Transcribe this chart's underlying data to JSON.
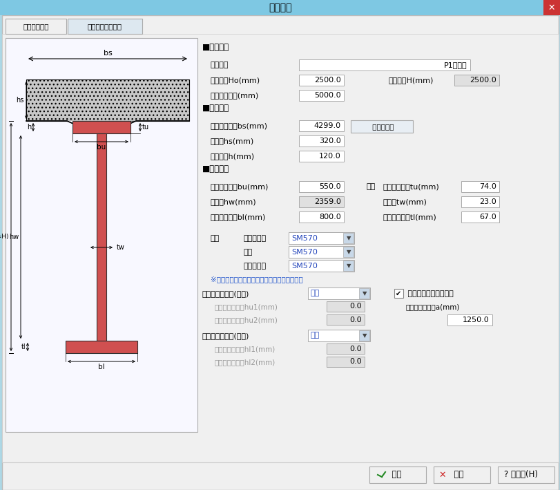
{
  "title": "断面形状",
  "bg_color": "#add8e6",
  "dialog_bg": "#f0f0f0",
  "tab1": "断面形状寸法",
  "tab2": "床版橋軸方向鉄筋",
  "section_basic": "■基本諸元",
  "label_name": "断面名称",
  "label_ho": "基準桁高Ho(mm)",
  "label_H": "鋼桁全高H(mm)",
  "label_dist": "固定点間距離(mm)",
  "val_name": "P1支点上",
  "val_ho": "2500.0",
  "val_H": "2500.0",
  "val_dist": "5000.0",
  "section_floor": "■床版諸元",
  "label_bs": "床版の有効幅bs(mm)",
  "label_hs": "床版厚hs(mm)",
  "label_h": "ハンチ高h(mm)",
  "val_bs": "4299.0",
  "val_hs": "320.0",
  "val_h": "120.0",
  "btn_santeiru": " 算定ツール",
  "section_main": "■主桁諸元",
  "label_bu": "上フランジ幅bu(mm)",
  "label_hw": "腹板高hw(mm)",
  "label_bl": "下フランジ幅bl(mm)",
  "label_banka": "板厚",
  "label_tu": "上フランジ厚tu(mm)",
  "label_tw": "腹板厚tw(mm)",
  "label_tl": "下フランジ厚tl(mm)",
  "val_bu": "550.0",
  "val_hw": "2359.0",
  "val_bl": "800.0",
  "val_tu": "74.0",
  "val_tw": "23.0",
  "val_tl": "67.0",
  "label_zaishitsu": "材質",
  "label_uf": "上フランジ",
  "label_fuku": "腹板",
  "label_lf": "下フランジ",
  "val_sm1": "SM570",
  "val_sm2": "SM570",
  "val_sm3": "SM570",
  "note_color": "#2255cc",
  "note": "※鋼材名称の書文字表記は降伏点一定鋼を表す",
  "label_suiheiu": "水平補剛材段数(上段)",
  "val_suiheiu": "なし",
  "cb_suichoku": " 垂直補剛材を配置する",
  "label_hu1": "水平補剛材位置hu1(mm)",
  "label_hu2": "水平補剛材位置hu2(mm)",
  "val_hu1": "0.0",
  "val_hu2": "0.0",
  "label_suichoku_a": "垂直補剛材間隔a(mm)",
  "val_suichoku_a": "1250.0",
  "label_suiheil": "水平補剛材段数(下段)",
  "val_suiheil": "なし",
  "label_hl1": "水平補剛材位置hl1(mm)",
  "label_hl2": "水平補剛材位置hl2(mm)",
  "val_hl1": "0.0",
  "val_hl2": "0.0",
  "btn_ok": "  確定",
  "btn_cancel": "  取消",
  "btn_help": "? ヘルプ(H)",
  "red_color": "#d05050",
  "title_bar_color": "#7ec8e3"
}
